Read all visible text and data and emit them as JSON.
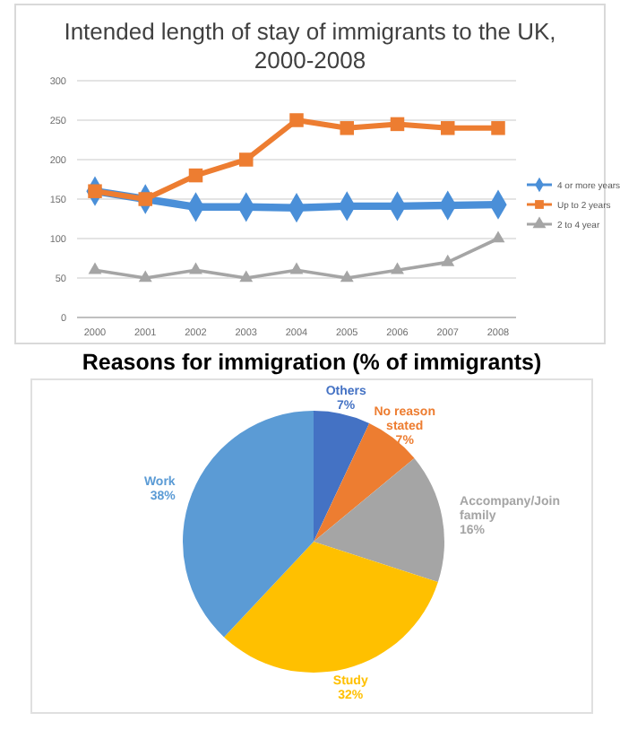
{
  "chart_data": [
    {
      "type": "line",
      "title": "Intended length of stay of immigrants to the UK, 2000-2008",
      "categories": [
        "2000",
        "2001",
        "2002",
        "2003",
        "2004",
        "2005",
        "2006",
        "2007",
        "2008"
      ],
      "series": [
        {
          "name": "4 or more years",
          "color": "#4a8fd8",
          "marker": "diamond",
          "values": [
            160,
            150,
            140,
            140,
            139,
            141,
            141,
            142,
            143
          ]
        },
        {
          "name": "Up to 2 years",
          "color": "#ed7d31",
          "marker": "square",
          "values": [
            160,
            150,
            180,
            200,
            250,
            240,
            245,
            240,
            240
          ]
        },
        {
          "name": "2 to 4 year",
          "color": "#a5a5a5",
          "marker": "triangle",
          "values": [
            60,
            50,
            60,
            50,
            60,
            50,
            60,
            70,
            100
          ]
        }
      ],
      "ylim": [
        0,
        300
      ],
      "yticks": [
        0,
        50,
        100,
        150,
        200,
        250,
        300
      ],
      "grid": "y",
      "legend": "right"
    },
    {
      "type": "pie",
      "title": "Reasons for immigration (% of immigrants)",
      "categories": [
        "Others",
        "No reason stated",
        "Accompany/Join family",
        "Study",
        "Work"
      ],
      "values": [
        7,
        7,
        16,
        32,
        38
      ],
      "value_labels": [
        "7%",
        "7%",
        "16%",
        "32%",
        "38%"
      ],
      "colors": [
        "#4472c4",
        "#ed7d31",
        "#a5a5a5",
        "#ffc000",
        "#5b9bd5"
      ]
    }
  ]
}
